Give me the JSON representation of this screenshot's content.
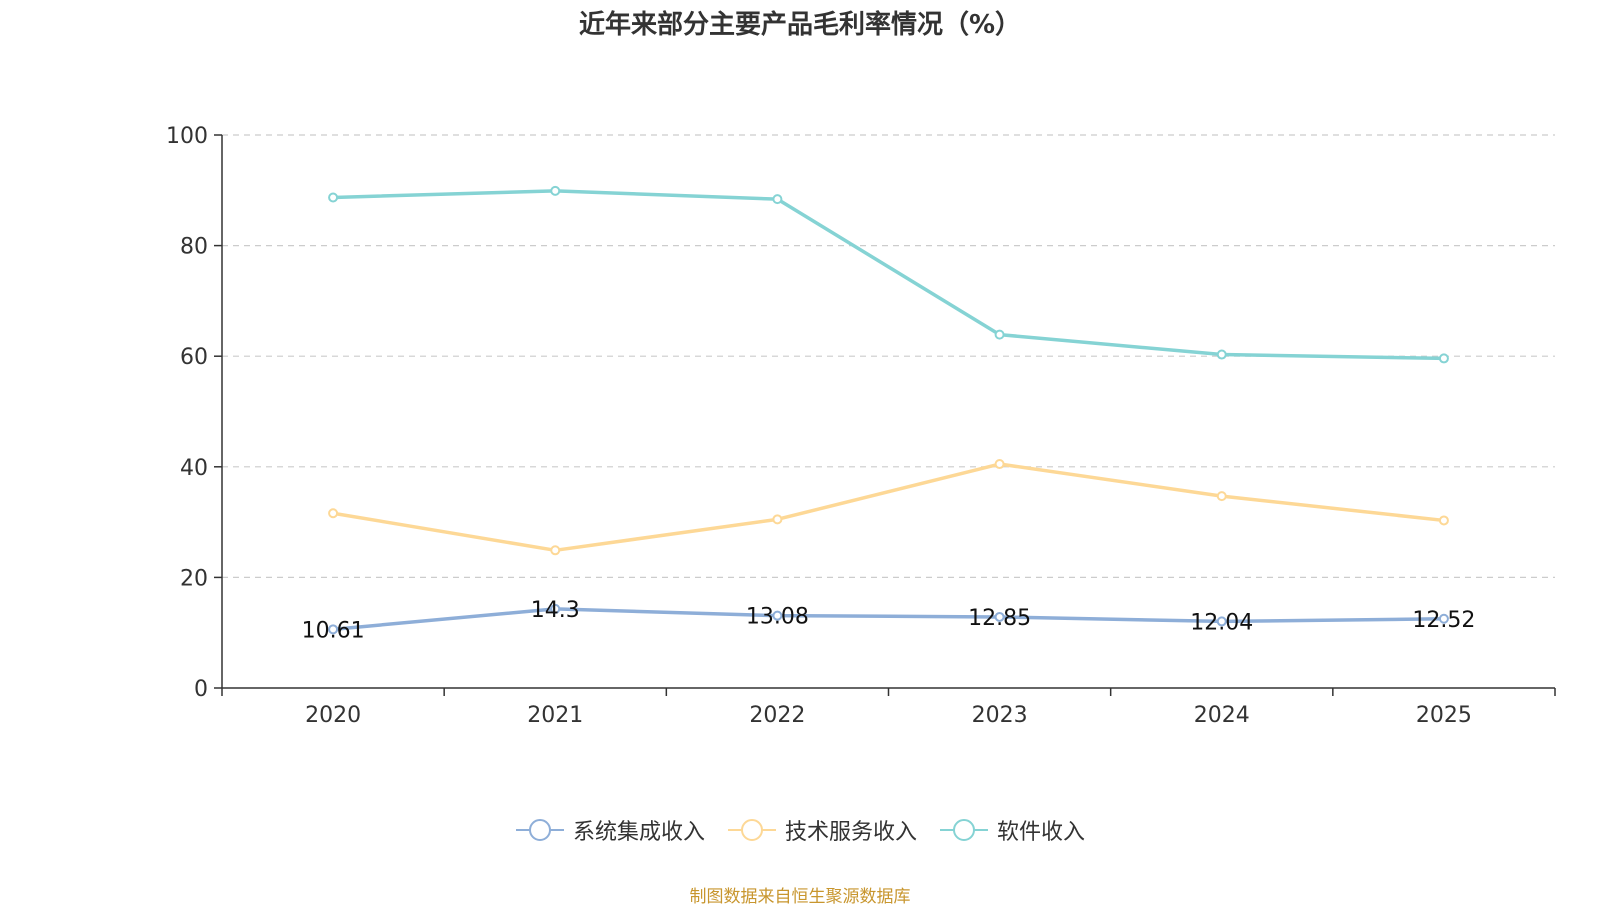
{
  "chart_data": {
    "type": "line",
    "title": "近年来部分主要产品毛利率情况（%）",
    "xlabel": "",
    "ylabel": "",
    "categories": [
      "2020",
      "2021",
      "2022",
      "2023",
      "2024",
      "2025"
    ],
    "ylim": [
      0,
      100
    ],
    "yticks": [
      0,
      20,
      40,
      60,
      80,
      100
    ],
    "grid": true,
    "legend_position": "bottom",
    "series": [
      {
        "name": "系统集成收入",
        "color": "#8eaed8",
        "values": [
          10.61,
          14.3,
          13.08,
          12.85,
          12.04,
          12.52
        ],
        "labels": [
          "10.61",
          "14.3",
          "13.08",
          "12.85",
          "12.04",
          "12.52"
        ]
      },
      {
        "name": "技术服务收入",
        "color": "#fdd896",
        "values": [
          31.6,
          24.9,
          30.5,
          40.5,
          34.7,
          30.3
        ]
      },
      {
        "name": "软件收入",
        "color": "#85d3d4",
        "values": [
          88.7,
          89.9,
          88.4,
          63.9,
          60.3,
          59.6
        ]
      }
    ]
  },
  "source": "制图数据来自恒生聚源数据库"
}
